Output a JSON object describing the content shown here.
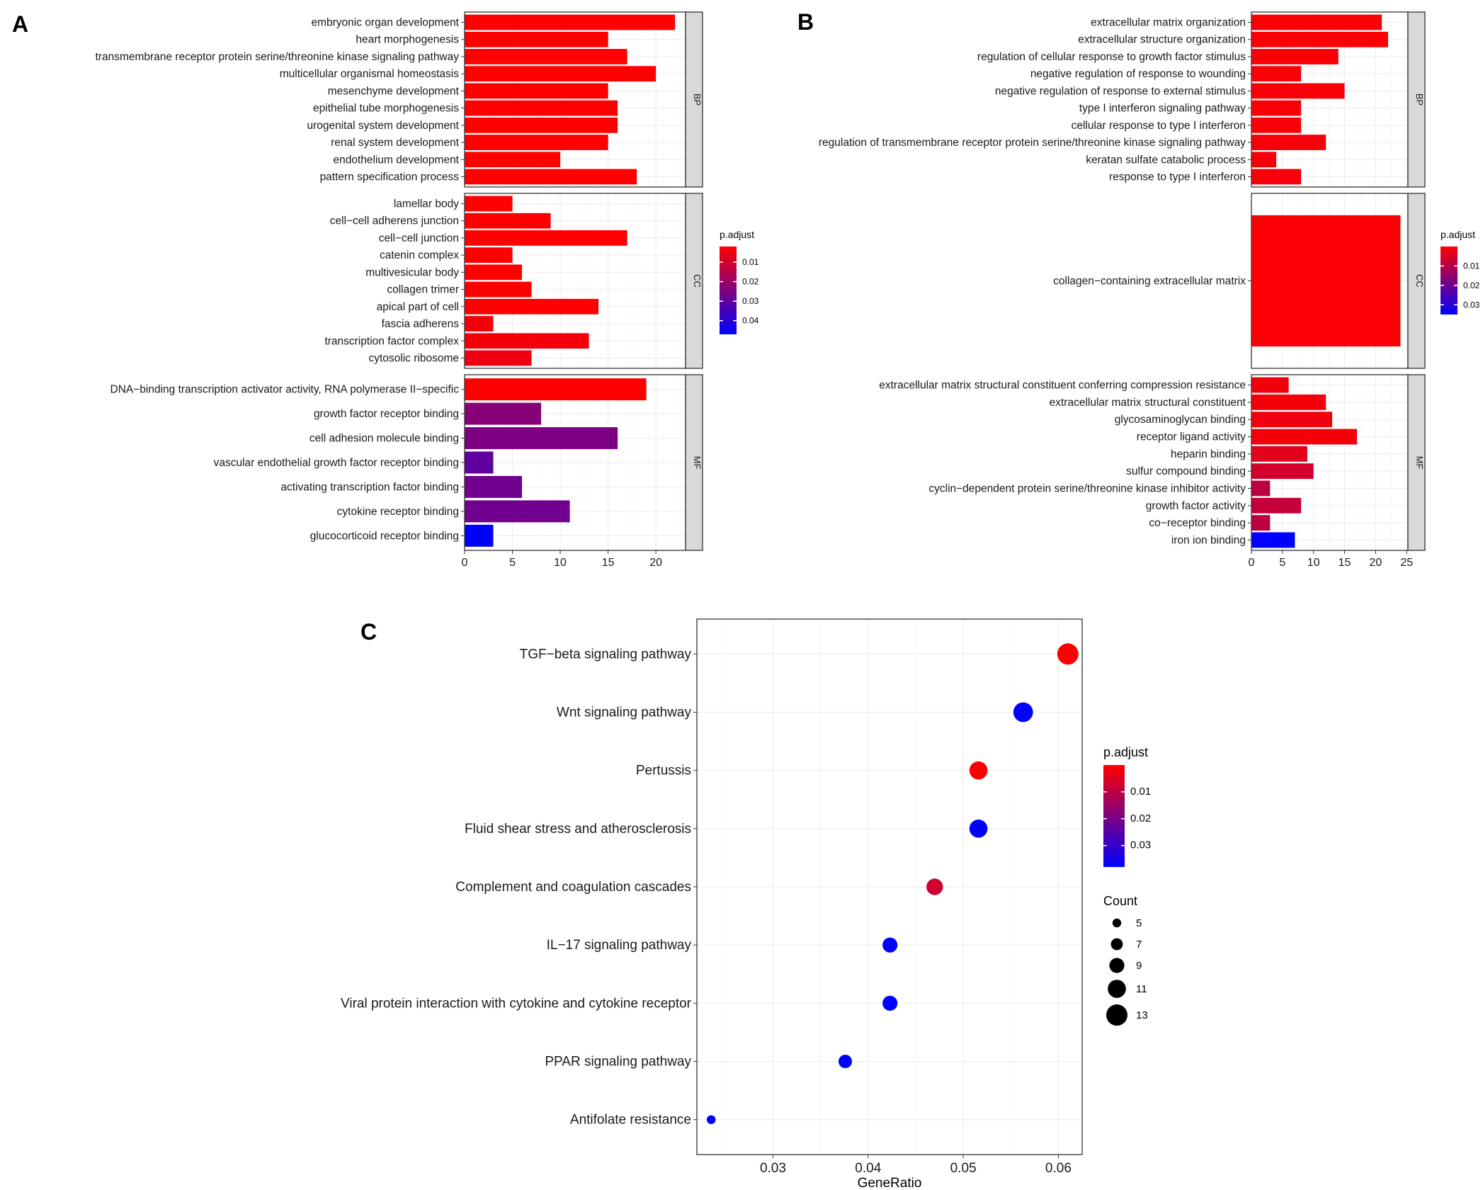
{
  "figure": {
    "panel_labels": [
      "A",
      "B",
      "C"
    ]
  },
  "colors": {
    "low_p": "#ff0000",
    "high_p": "#0000ff",
    "panel_border": "#333333",
    "grid": "#ebebeb",
    "strip_fill": "#d9d9d9"
  },
  "chart_data": [
    {
      "id": "A",
      "type": "bar",
      "orientation": "horizontal",
      "xlabel": "",
      "xlim": [
        0,
        23.1
      ],
      "xticks": [
        0,
        5,
        10,
        15,
        20
      ],
      "legend": {
        "title": "p.adjust",
        "range": [
          0.002,
          0.047
        ],
        "ticks": [
          0.01,
          0.02,
          0.03,
          0.04
        ],
        "tick_labels": [
          "0.01",
          "0.02",
          "0.03",
          "0.04"
        ],
        "placement": "right"
      },
      "facets": [
        {
          "label": "BP",
          "categories": [
            "embryonic organ development",
            "heart morphogenesis",
            "transmembrane receptor protein serine/threonine kinase signaling pathway",
            "multicellular organismal homeostasis",
            "mesenchyme development",
            "epithelial tube morphogenesis",
            "urogenital system development",
            "renal system development",
            "endothelium development",
            "pattern specification process"
          ],
          "values": [
            22,
            15,
            17,
            20,
            15,
            16,
            16,
            15,
            10,
            18
          ],
          "p_adjust": [
            0.0005,
            0.0005,
            0.0005,
            0.0005,
            0.0005,
            0.0005,
            0.0005,
            0.0005,
            0.0005,
            0.0005
          ]
        },
        {
          "label": "CC",
          "categories": [
            "lamellar body",
            "cell−cell adherens junction",
            "cell−cell junction",
            "catenin complex",
            "multivesicular body",
            "collagen trimer",
            "apical part of cell",
            "fascia adherens",
            "transcription factor complex",
            "cytosolic ribosome"
          ],
          "values": [
            5,
            9,
            17,
            5,
            6,
            7,
            14,
            3,
            13,
            7
          ],
          "p_adjust": [
            0.001,
            0.001,
            0.001,
            0.0015,
            0.0015,
            0.002,
            0.002,
            0.004,
            0.004,
            0.005
          ]
        },
        {
          "label": "MF",
          "categories": [
            "DNA−binding transcription activator activity, RNA polymerase II−specific",
            "growth factor receptor binding",
            "cell adhesion molecule binding",
            "vascular endothelial growth factor receptor binding",
            "activating transcription factor binding",
            "cytokine receptor binding",
            "glucocorticoid receptor binding"
          ],
          "values": [
            19,
            8,
            16,
            3,
            6,
            11,
            3
          ],
          "p_adjust": [
            0.001,
            0.023,
            0.025,
            0.03,
            0.027,
            0.027,
            0.047
          ]
        }
      ]
    },
    {
      "id": "B",
      "type": "bar",
      "orientation": "horizontal",
      "xlabel": "",
      "xlim": [
        0,
        25.2
      ],
      "xticks": [
        0,
        5,
        10,
        15,
        20,
        25
      ],
      "legend": {
        "title": "p.adjust",
        "range": [
          0.0,
          0.035
        ],
        "ticks": [
          0.01,
          0.02,
          0.03
        ],
        "tick_labels": [
          "0.01",
          "0.02",
          "0.03"
        ],
        "placement": "right"
      },
      "facets": [
        {
          "label": "BP",
          "categories": [
            "extracellular matrix organization",
            "extracellular structure organization",
            "regulation of cellular response to growth factor stimulus",
            "negative regulation of response to wounding",
            "negative regulation of response to external stimulus",
            "type I interferon signaling pathway",
            "cellular response to type I interferon",
            "regulation of transmembrane receptor protein serine/threonine kinase signaling pathway",
            "keratan sulfate catabolic process",
            "response to type I interferon"
          ],
          "values": [
            21,
            22,
            14,
            8,
            15,
            8,
            8,
            12,
            4,
            8
          ],
          "p_adjust": [
            0.0005,
            0.0005,
            0.0008,
            0.001,
            0.001,
            0.001,
            0.001,
            0.0012,
            0.0012,
            0.0012
          ]
        },
        {
          "label": "CC",
          "categories": [
            "collagen−containing extracellular matrix"
          ],
          "values": [
            24
          ],
          "p_adjust": [
            0.0005
          ]
        },
        {
          "label": "MF",
          "categories": [
            "extracellular matrix structural constituent conferring compression resistance",
            "extracellular matrix structural constituent",
            "glycosaminoglycan binding",
            "receptor ligand activity",
            "heparin binding",
            "sulfur compound binding",
            "cyclin−dependent protein serine/threonine kinase inhibitor activity",
            "growth factor activity",
            "co−receptor binding",
            "iron ion binding"
          ],
          "values": [
            6,
            12,
            13,
            17,
            9,
            10,
            3,
            8,
            3,
            7
          ],
          "p_adjust": [
            0.0015,
            0.0015,
            0.0018,
            0.0015,
            0.004,
            0.006,
            0.009,
            0.008,
            0.009,
            0.035
          ]
        }
      ]
    },
    {
      "id": "C",
      "type": "scatter",
      "title": "",
      "xlabel": "GeneRatio",
      "ylabel": "",
      "xlim": [
        0.022,
        0.0625
      ],
      "xticks": [
        0.03,
        0.04,
        0.05,
        0.06
      ],
      "xtick_labels": [
        "0.03",
        "0.04",
        "0.05",
        "0.06"
      ],
      "categories": [
        "TGF−beta signaling pathway",
        "Wnt signaling pathway",
        "Pertussis",
        "Fluid shear stress and atherosclerosis",
        "Complement and coagulation cascades",
        "IL−17 signaling pathway",
        "Viral protein interaction with cytokine and cytokine receptor",
        "PPAR signaling pathway",
        "Antifolate resistance"
      ],
      "gene_ratio": [
        0.061,
        0.0563,
        0.0516,
        0.0516,
        0.047,
        0.0423,
        0.0423,
        0.0376,
        0.0235
      ],
      "count": [
        13,
        12,
        11,
        11,
        10,
        9,
        9,
        8,
        5
      ],
      "p_adjust": [
        0.0005,
        0.038,
        0.0005,
        0.038,
        0.007,
        0.038,
        0.038,
        0.038,
        0.038
      ],
      "legend_color": {
        "title": "p.adjust",
        "range": [
          0.0,
          0.038
        ],
        "ticks": [
          0.01,
          0.02,
          0.03
        ],
        "tick_labels": [
          "0.01",
          "0.02",
          "0.03"
        ],
        "placement": "right"
      },
      "legend_size": {
        "title": "Count",
        "values": [
          5,
          7,
          9,
          11,
          13
        ],
        "labels": [
          "5",
          "7",
          "9",
          "11",
          "13"
        ],
        "placement": "right"
      }
    }
  ]
}
